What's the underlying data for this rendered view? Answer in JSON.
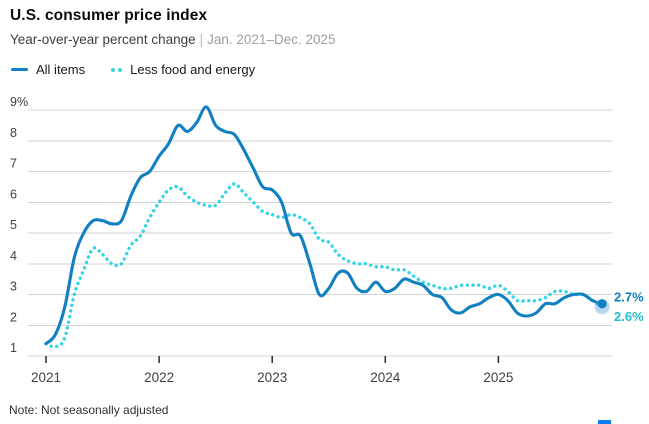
{
  "header": {
    "title": "U.S. consumer price index",
    "subtitle": "Year-over-year percent change",
    "separator": "|",
    "date_range": "Jan. 2021–Dec. 2025"
  },
  "legend": [
    {
      "label": "All items",
      "style": "solid",
      "color": "#1080c2"
    },
    {
      "label": "Less food and energy",
      "style": "dotted",
      "color": "#35d4e6"
    }
  ],
  "note": "Note: Not seasonally adjusted",
  "colors": {
    "all_items": "#1080c2",
    "core": "#35d4e6",
    "core_label": "#24bcd2",
    "gridline": "#d2d3d5",
    "tick": "#26282b",
    "axis_label": "#3e4145",
    "end_dot_halo": "#5aa8dc",
    "brand": "#0b7ef0"
  },
  "chart_data": {
    "type": "line",
    "title": "U.S. consumer price index",
    "ylabel": "Year-over-year percent change",
    "x_start": "Jan. 2021",
    "x_end": "Dec. 2025",
    "frequency": "monthly",
    "ylim": [
      1,
      9
    ],
    "grid": true,
    "legend_position": "top-left",
    "ytick_values": [
      9,
      8,
      7,
      6,
      5,
      4,
      3,
      2,
      1
    ],
    "ytick_labels": [
      "9%",
      "8",
      "7",
      "6",
      "5",
      "4",
      "3",
      "2",
      "1"
    ],
    "x_tick_labels": [
      "2021",
      "2022",
      "2023",
      "2024",
      "2025"
    ],
    "series": [
      {
        "name": "All items",
        "dash": "solid",
        "color": "#1080c2",
        "label_color": "#0f7dbf",
        "end_label": "2.7%",
        "values": [
          1.4,
          1.7,
          2.6,
          4.2,
          5.0,
          5.4,
          5.4,
          5.3,
          5.4,
          6.2,
          6.8,
          7.0,
          7.5,
          7.9,
          8.5,
          8.3,
          8.6,
          9.1,
          8.5,
          8.3,
          8.2,
          7.7,
          7.1,
          6.5,
          6.4,
          6.0,
          5.0,
          4.9,
          4.0,
          3.0,
          3.2,
          3.7,
          3.7,
          3.2,
          3.1,
          3.4,
          3.1,
          3.2,
          3.5,
          3.4,
          3.3,
          3.0,
          2.9,
          2.5,
          2.4,
          2.6,
          2.7,
          2.9,
          3.0,
          2.8,
          2.4,
          2.3,
          2.4,
          2.7,
          2.7,
          2.9,
          3.0,
          3.0,
          2.8,
          2.7
        ]
      },
      {
        "name": "Less food and energy",
        "dash": "dotted",
        "color": "#35d4e6",
        "label_color": "#24bcd2",
        "end_label": "2.6%",
        "values": [
          1.4,
          1.3,
          1.6,
          3.0,
          3.8,
          4.5,
          4.3,
          4.0,
          4.0,
          4.6,
          4.9,
          5.5,
          6.0,
          6.4,
          6.5,
          6.2,
          6.0,
          5.9,
          5.9,
          6.3,
          6.6,
          6.3,
          6.0,
          5.7,
          5.6,
          5.5,
          5.6,
          5.5,
          5.3,
          4.8,
          4.7,
          4.3,
          4.1,
          4.0,
          4.0,
          3.9,
          3.9,
          3.8,
          3.8,
          3.6,
          3.4,
          3.3,
          3.2,
          3.2,
          3.3,
          3.3,
          3.3,
          3.2,
          3.3,
          3.1,
          2.8,
          2.8,
          2.8,
          2.9,
          3.1,
          3.1,
          3.0,
          3.0,
          2.8,
          2.6
        ]
      }
    ]
  }
}
